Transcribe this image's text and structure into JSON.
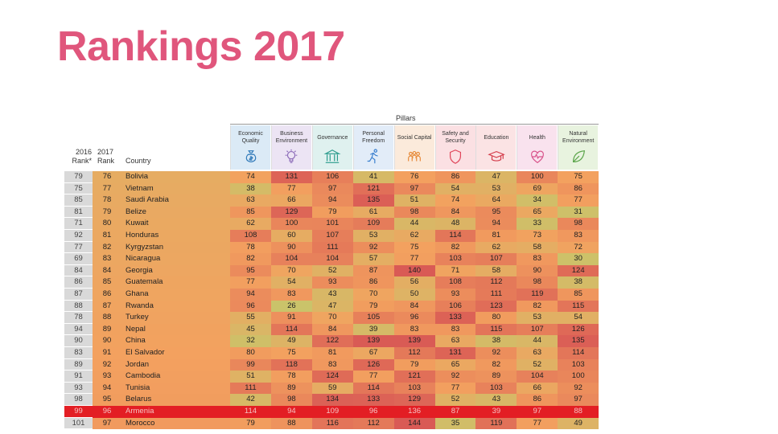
{
  "title": "Rankings 2017",
  "pillars_label": "Pillars",
  "headers": {
    "rank2016": "2016\nRank*",
    "rank2017": "2017\nRank",
    "country": "Country"
  },
  "pillars": [
    {
      "name": "Economic\nQuality",
      "icon": "money-bag-icon",
      "tint": "#dbeaf6"
    },
    {
      "name": "Business\nEnvironment",
      "icon": "lightbulb-icon",
      "tint": "#ece4f4"
    },
    {
      "name": "Governance",
      "icon": "institution-icon",
      "tint": "#dff1ef"
    },
    {
      "name": "Personal\nFreedom",
      "icon": "runner-icon",
      "tint": "#e2ecf8"
    },
    {
      "name": "Social Capital",
      "icon": "people-icon",
      "tint": "#fbeadb"
    },
    {
      "name": "Safety and\nSecurity",
      "icon": "shield-icon",
      "tint": "#fbe0e3"
    },
    {
      "name": "Education",
      "icon": "graduation-cap-icon",
      "tint": "#fbe3e4"
    },
    {
      "name": "Health",
      "icon": "heartbeat-icon",
      "tint": "#f9e2ee"
    },
    {
      "name": "Natural\nEnvironment",
      "icon": "leaf-icon",
      "tint": "#e8f3df"
    }
  ],
  "rows": [
    {
      "r16": "79",
      "r17": "76",
      "country": "Bolivia",
      "vals": [
        "74",
        "131",
        "106",
        "41",
        "76",
        "86",
        "47",
        "100",
        "75"
      ]
    },
    {
      "r16": "75",
      "r17": "77",
      "country": "Vietnam",
      "vals": [
        "38",
        "77",
        "97",
        "121",
        "97",
        "54",
        "53",
        "69",
        "86"
      ]
    },
    {
      "r16": "85",
      "r17": "78",
      "country": "Saudi Arabia",
      "vals": [
        "63",
        "66",
        "94",
        "135",
        "51",
        "74",
        "64",
        "34",
        "77"
      ]
    },
    {
      "r16": "81",
      "r17": "79",
      "country": "Belize",
      "vals": [
        "85",
        "129",
        "79",
        "61",
        "98",
        "84",
        "95",
        "65",
        "31"
      ]
    },
    {
      "r16": "71",
      "r17": "80",
      "country": "Kuwait",
      "vals": [
        "62",
        "100",
        "101",
        "109",
        "44",
        "48",
        "94",
        "33",
        "98"
      ]
    },
    {
      "r16": "92",
      "r17": "81",
      "country": "Honduras",
      "vals": [
        "108",
        "60",
        "107",
        "53",
        "62",
        "114",
        "81",
        "73",
        "83"
      ]
    },
    {
      "r16": "77",
      "r17": "82",
      "country": "Kyrgyzstan",
      "vals": [
        "78",
        "90",
        "111",
        "92",
        "75",
        "82",
        "62",
        "58",
        "72"
      ]
    },
    {
      "r16": "69",
      "r17": "83",
      "country": "Nicaragua",
      "vals": [
        "82",
        "104",
        "104",
        "57",
        "77",
        "103",
        "107",
        "83",
        "30"
      ]
    },
    {
      "r16": "84",
      "r17": "84",
      "country": "Georgia",
      "vals": [
        "95",
        "70",
        "52",
        "87",
        "140",
        "71",
        "58",
        "90",
        "124"
      ]
    },
    {
      "r16": "86",
      "r17": "85",
      "country": "Guatemala",
      "vals": [
        "77",
        "54",
        "93",
        "86",
        "56",
        "108",
        "112",
        "98",
        "38"
      ]
    },
    {
      "r16": "87",
      "r17": "86",
      "country": "Ghana",
      "vals": [
        "94",
        "83",
        "43",
        "70",
        "50",
        "93",
        "111",
        "119",
        "85"
      ]
    },
    {
      "r16": "88",
      "r17": "87",
      "country": "Rwanda",
      "vals": [
        "96",
        "26",
        "47",
        "79",
        "84",
        "106",
        "123",
        "82",
        "115"
      ]
    },
    {
      "r16": "78",
      "r17": "88",
      "country": "Turkey",
      "vals": [
        "55",
        "91",
        "70",
        "105",
        "96",
        "133",
        "80",
        "53",
        "54"
      ]
    },
    {
      "r16": "94",
      "r17": "89",
      "country": "Nepal",
      "vals": [
        "45",
        "114",
        "84",
        "39",
        "83",
        "83",
        "115",
        "107",
        "126"
      ]
    },
    {
      "r16": "90",
      "r17": "90",
      "country": "China",
      "vals": [
        "32",
        "49",
        "122",
        "139",
        "139",
        "63",
        "38",
        "44",
        "135"
      ]
    },
    {
      "r16": "83",
      "r17": "91",
      "country": "El Salvador",
      "vals": [
        "80",
        "75",
        "81",
        "67",
        "112",
        "131",
        "92",
        "63",
        "114"
      ]
    },
    {
      "r16": "89",
      "r17": "92",
      "country": "Jordan",
      "vals": [
        "99",
        "118",
        "83",
        "126",
        "79",
        "65",
        "82",
        "52",
        "103"
      ]
    },
    {
      "r16": "91",
      "r17": "93",
      "country": "Cambodia",
      "vals": [
        "51",
        "78",
        "124",
        "77",
        "121",
        "92",
        "89",
        "104",
        "100"
      ]
    },
    {
      "r16": "93",
      "r17": "94",
      "country": "Tunisia",
      "vals": [
        "111",
        "89",
        "59",
        "114",
        "103",
        "77",
        "103",
        "66",
        "92"
      ]
    },
    {
      "r16": "98",
      "r17": "95",
      "country": "Belarus",
      "vals": [
        "42",
        "98",
        "134",
        "133",
        "129",
        "52",
        "43",
        "86",
        "97"
      ]
    },
    {
      "r16": "99",
      "r17": "96",
      "country": "Armenia",
      "vals": [
        "114",
        "94",
        "109",
        "96",
        "136",
        "87",
        "39",
        "97",
        "88"
      ],
      "highlight": true
    },
    {
      "r16": "101",
      "r17": "97",
      "country": "Morocco",
      "vals": [
        "79",
        "88",
        "116",
        "112",
        "144",
        "35",
        "119",
        "77",
        "49"
      ]
    }
  ],
  "colors": {
    "title": "#e0567c",
    "highlight_row": "#e31e24",
    "scale_good": "#c9c46a",
    "scale_mid": "#f3a15f",
    "scale_bad": "#d95a55"
  }
}
